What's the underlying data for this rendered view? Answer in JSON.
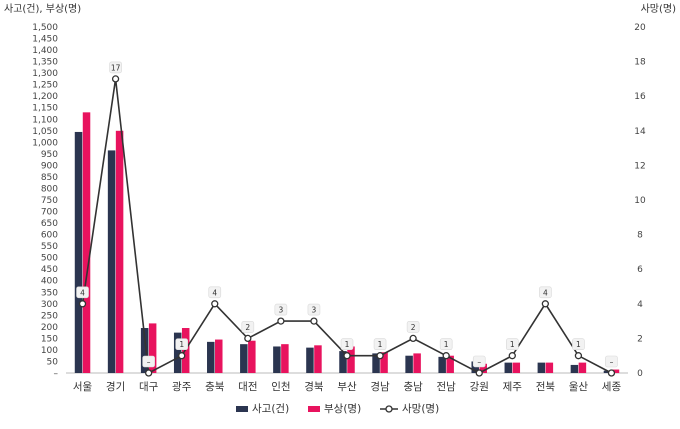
{
  "chart_data": {
    "type": "bar",
    "left_axis_label": "사고(건), 부상(명)",
    "right_axis_label": "사망(명)",
    "categories": [
      "서울",
      "경기",
      "대구",
      "광주",
      "충북",
      "대전",
      "인천",
      "경북",
      "부산",
      "경남",
      "충남",
      "전남",
      "강원",
      "제주",
      "전북",
      "울산",
      "세종"
    ],
    "left_ylim": [
      0,
      1500
    ],
    "left_ticks": [
      "–",
      "50",
      "100",
      "150",
      "200",
      "250",
      "300",
      "350",
      "400",
      "450",
      "500",
      "550",
      "600",
      "650",
      "700",
      "750",
      "800",
      "850",
      "900",
      "950",
      "1,000",
      "1,050",
      "1,100",
      "1,150",
      "1,200",
      "1,250",
      "1,300",
      "1,350",
      "1,400",
      "1,450",
      "1,500"
    ],
    "right_ylim": [
      0,
      20
    ],
    "right_ticks": [
      "0",
      "2",
      "4",
      "6",
      "8",
      "10",
      "12",
      "14",
      "16",
      "18",
      "20"
    ],
    "series": [
      {
        "name": "사고(건)",
        "kind": "bar",
        "axis": "left",
        "color": "#2b3550",
        "values": [
          1045,
          965,
          195,
          175,
          135,
          125,
          115,
          110,
          95,
          85,
          75,
          70,
          50,
          45,
          45,
          35,
          10
        ]
      },
      {
        "name": "부상(명)",
        "kind": "bar",
        "axis": "left",
        "color": "#e8135e",
        "values": [
          1130,
          1050,
          215,
          195,
          145,
          140,
          125,
          120,
          115,
          90,
          85,
          75,
          40,
          45,
          45,
          45,
          15
        ]
      },
      {
        "name": "사망(명)",
        "kind": "line",
        "axis": "right",
        "color": "#333333",
        "values": [
          4,
          17,
          0,
          1,
          4,
          2,
          3,
          3,
          1,
          1,
          2,
          1,
          0,
          1,
          4,
          1,
          0
        ],
        "labels": [
          "4",
          "17",
          "–",
          "1",
          "4",
          "2",
          "3",
          "3",
          "1",
          "1",
          "2",
          "1",
          "–",
          "1",
          "4",
          "1",
          "–"
        ]
      }
    ],
    "grid": false,
    "legend_position": "bottom-center"
  }
}
